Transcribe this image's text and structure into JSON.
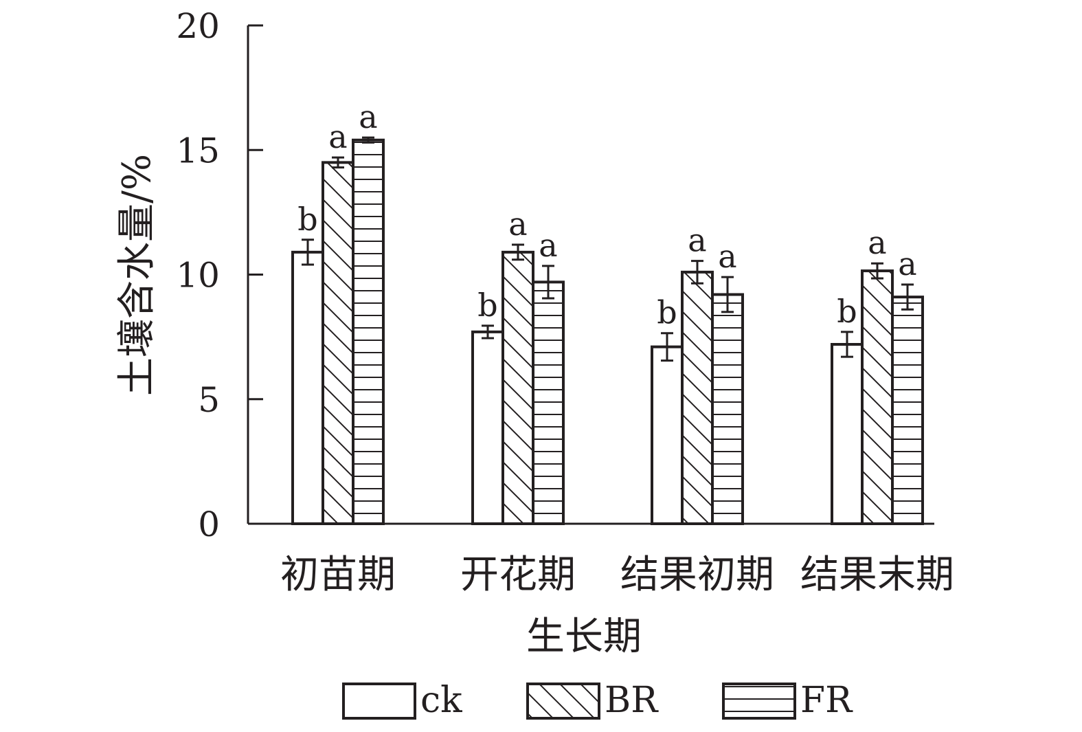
{
  "chart_data": {
    "type": "bar",
    "categories": [
      "初苗期",
      "开花期",
      "结果初期",
      "结果末期"
    ],
    "xlabel": "生长期",
    "ylabel": "土壤含水量/%",
    "ylim": [
      0,
      20
    ],
    "yticks": [
      0,
      5,
      10,
      15,
      20
    ],
    "grid": false,
    "legend_position": "bottom",
    "series": [
      {
        "name": "ck",
        "pattern": "none",
        "values": [
          10.9,
          7.7,
          7.1,
          7.2
        ],
        "errors": [
          0.5,
          0.25,
          0.55,
          0.5
        ],
        "labels": [
          "b",
          "b",
          "b",
          "b"
        ]
      },
      {
        "name": "BR",
        "pattern": "diagonal",
        "values": [
          14.5,
          10.9,
          10.1,
          10.15
        ],
        "errors": [
          0.2,
          0.3,
          0.45,
          0.3
        ],
        "labels": [
          "a",
          "a",
          "a",
          "a"
        ]
      },
      {
        "name": "FR",
        "pattern": "horizontal",
        "values": [
          15.4,
          9.7,
          9.2,
          9.1
        ],
        "errors": [
          0.1,
          0.65,
          0.7,
          0.5
        ],
        "labels": [
          "a",
          "a",
          "a",
          "a"
        ]
      }
    ],
    "colors": {
      "ink": "#231f20",
      "fill": "#ffffff"
    }
  }
}
